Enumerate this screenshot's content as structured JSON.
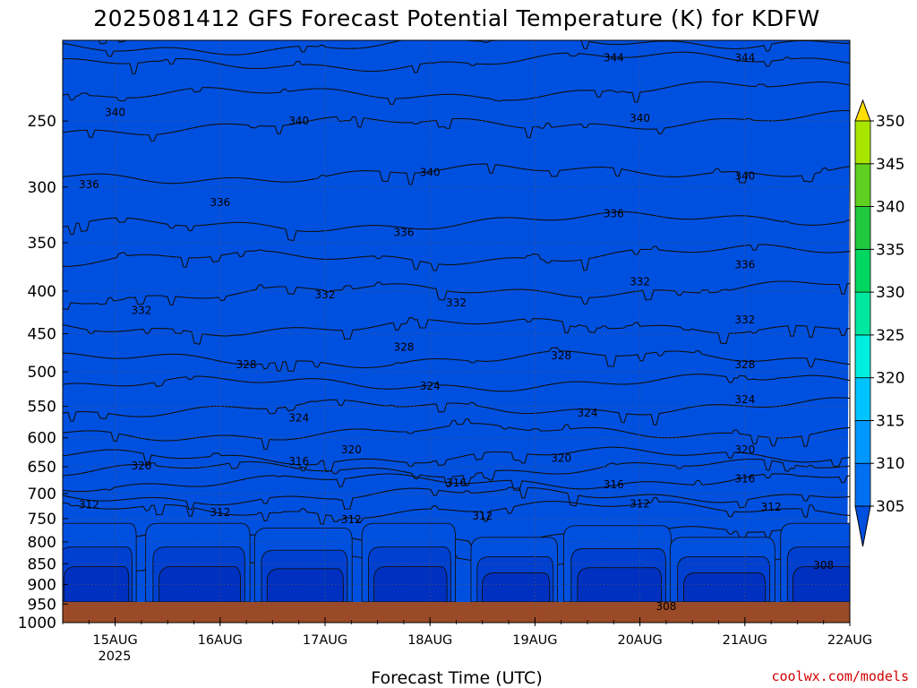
{
  "colors": {
    "band_fills": [
      "#0050e0",
      "#0070f0",
      "#0098ff",
      "#00c4ff",
      "#00eedd",
      "#00e8a0",
      "#00d660",
      "#20c840",
      "#60d020",
      "#a8e600",
      "#e8f400",
      "#ffe000"
    ],
    "ground": "#9b4a27",
    "credit": "#d40000"
  },
  "chart_data": {
    "type": "heatmap",
    "title": "2025081412 GFS Forecast Potential Temperature (K) for KDFW",
    "xlabel": "Forecast Time (UTC)",
    "ylabel": "",
    "x_ticks": [
      "15AUG",
      "16AUG",
      "17AUG",
      "18AUG",
      "19AUG",
      "20AUG",
      "21AUG",
      "22AUG"
    ],
    "x_year_label": "2025",
    "x_range": [
      "2025-08-14 12Z",
      "2025-08-22 00Z"
    ],
    "y_ticks": [
      250,
      300,
      350,
      400,
      450,
      500,
      550,
      600,
      650,
      700,
      750,
      800,
      850,
      900,
      950,
      1000
    ],
    "y_range_hpa": [
      200,
      1000
    ],
    "y_scale": "log-pressure",
    "colorbar": {
      "levels": [
        305,
        310,
        315,
        320,
        325,
        330,
        335,
        340,
        345,
        350
      ],
      "labels": [
        "305",
        "310",
        "315",
        "320",
        "325",
        "330",
        "335",
        "340",
        "345",
        "350"
      ],
      "extend": "both"
    },
    "contour_interval_K": 2,
    "contour_labels": [
      {
        "text": "344",
        "date": "2025-08-19 18Z",
        "hpa": 210
      },
      {
        "text": "344",
        "date": "2025-08-21 00Z",
        "hpa": 210
      },
      {
        "text": "340",
        "date": "2025-08-15 00Z",
        "hpa": 244
      },
      {
        "text": "340",
        "date": "2025-08-16 18Z",
        "hpa": 250
      },
      {
        "text": "340",
        "date": "2025-08-20 00Z",
        "hpa": 248
      },
      {
        "text": "340",
        "date": "2025-08-18 00Z",
        "hpa": 288
      },
      {
        "text": "340",
        "date": "2025-08-21 00Z",
        "hpa": 291
      },
      {
        "text": "336",
        "date": "2025-08-14 18Z",
        "hpa": 298
      },
      {
        "text": "336",
        "date": "2025-08-16 00Z",
        "hpa": 313
      },
      {
        "text": "336",
        "date": "2025-08-19 18Z",
        "hpa": 323
      },
      {
        "text": "336",
        "date": "2025-08-17 18Z",
        "hpa": 340
      },
      {
        "text": "336",
        "date": "2025-08-21 00Z",
        "hpa": 372
      },
      {
        "text": "332",
        "date": "2025-08-20 00Z",
        "hpa": 390
      },
      {
        "text": "332",
        "date": "2025-08-17 00Z",
        "hpa": 404
      },
      {
        "text": "332",
        "date": "2025-08-18 06Z",
        "hpa": 413
      },
      {
        "text": "332",
        "date": "2025-08-15 06Z",
        "hpa": 422
      },
      {
        "text": "332",
        "date": "2025-08-21 00Z",
        "hpa": 433
      },
      {
        "text": "328",
        "date": "2025-08-17 18Z",
        "hpa": 467
      },
      {
        "text": "328",
        "date": "2025-08-19 06Z",
        "hpa": 478
      },
      {
        "text": "328",
        "date": "2025-08-16 06Z",
        "hpa": 490
      },
      {
        "text": "328",
        "date": "2025-08-21 00Z",
        "hpa": 490
      },
      {
        "text": "324",
        "date": "2025-08-18 00Z",
        "hpa": 520
      },
      {
        "text": "324",
        "date": "2025-08-21 00Z",
        "hpa": 540
      },
      {
        "text": "324",
        "date": "2025-08-19 12Z",
        "hpa": 560
      },
      {
        "text": "324",
        "date": "2025-08-16 18Z",
        "hpa": 568
      },
      {
        "text": "320",
        "date": "2025-08-17 06Z",
        "hpa": 620
      },
      {
        "text": "320",
        "date": "2025-08-21 00Z",
        "hpa": 620
      },
      {
        "text": "320",
        "date": "2025-08-19 06Z",
        "hpa": 635
      },
      {
        "text": "320",
        "date": "2025-08-15 06Z",
        "hpa": 648
      },
      {
        "text": "316",
        "date": "2025-08-16 18Z",
        "hpa": 640
      },
      {
        "text": "316",
        "date": "2025-08-21 00Z",
        "hpa": 672
      },
      {
        "text": "316",
        "date": "2025-08-18 06Z",
        "hpa": 680
      },
      {
        "text": "316",
        "date": "2025-08-19 18Z",
        "hpa": 683
      },
      {
        "text": "312",
        "date": "2025-08-14 18Z",
        "hpa": 722
      },
      {
        "text": "312",
        "date": "2025-08-20 00Z",
        "hpa": 720
      },
      {
        "text": "312",
        "date": "2025-08-21 06Z",
        "hpa": 727
      },
      {
        "text": "312",
        "date": "2025-08-16 00Z",
        "hpa": 737
      },
      {
        "text": "312",
        "date": "2025-08-18 12Z",
        "hpa": 745
      },
      {
        "text": "312",
        "date": "2025-08-17 06Z",
        "hpa": 752
      },
      {
        "text": "308",
        "date": "2025-08-21 18Z",
        "hpa": 853
      },
      {
        "text": "308",
        "date": "2025-08-20 06Z",
        "hpa": 956
      }
    ]
  },
  "footer": {
    "credit": "coolwx.com/models"
  }
}
